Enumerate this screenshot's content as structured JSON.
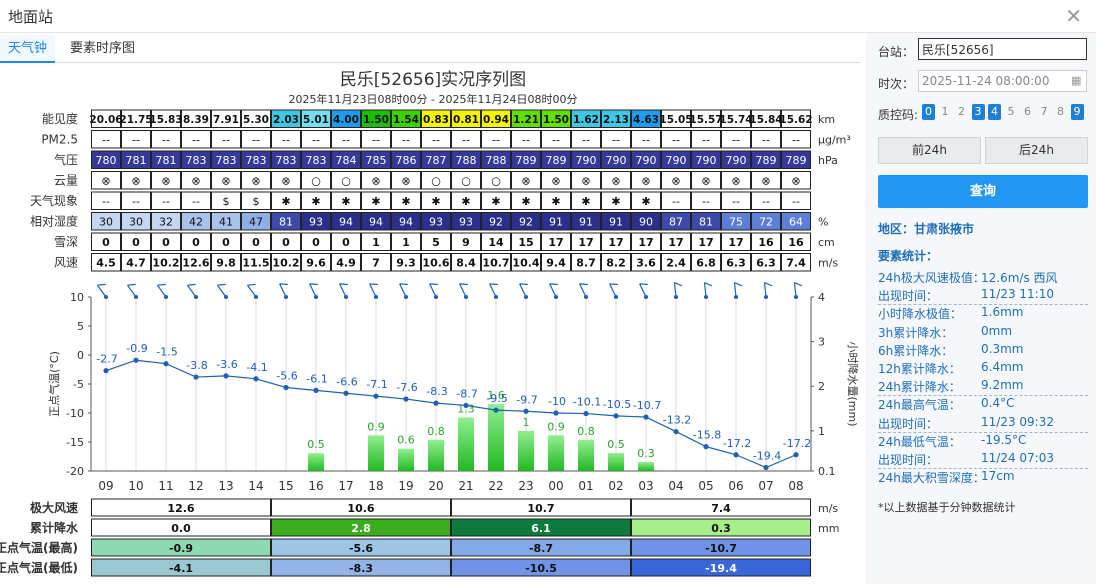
{
  "window": {
    "title": "地面站"
  },
  "tabs": [
    {
      "label": "天气钟"
    },
    {
      "label": "要素时序图"
    }
  ],
  "chart": {
    "title": "民乐[52656]实况序列图",
    "subtitle": "2025年11月23日08时00分 - 2025年11月24日08时00分"
  },
  "table": {
    "rows": [
      {
        "label": "能见度",
        "unit": "km",
        "values": [
          "20.06",
          "21.75",
          "15.83",
          "8.39",
          "7.91",
          "5.30",
          "2.03",
          "5.01",
          "4.00",
          "1.50",
          "1.54",
          "0.83",
          "0.81",
          "0.94",
          "1.21",
          "1.50",
          "1.62",
          "2.13",
          "4.63",
          "15.05",
          "15.57",
          "15.74",
          "15.84",
          "15.62"
        ],
        "colors": [
          "#fff",
          "#fff",
          "#fff",
          "#fff",
          "#fff",
          "#fff",
          "#3fc7e6",
          "#74dff0",
          "#1e9df0",
          "#18c000",
          "#3bd200",
          "#f5f500",
          "#f5f500",
          "#f5f500",
          "#60e000",
          "#60e000",
          "#3fc7e6",
          "#3fc7e6",
          "#1e9df0",
          "#fff",
          "#fff",
          "#fff",
          "#fff",
          "#fff"
        ]
      },
      {
        "label": "PM2.5",
        "unit": "μg/m³",
        "values": [
          "--",
          "--",
          "--",
          "--",
          "--",
          "--",
          "--",
          "--",
          "--",
          "--",
          "--",
          "--",
          "--",
          "--",
          "--",
          "--",
          "--",
          "--",
          "--",
          "--",
          "--",
          "--",
          "--",
          "--"
        ]
      },
      {
        "label": "气压",
        "unit": "hPa",
        "values": [
          "780",
          "781",
          "781",
          "783",
          "783",
          "783",
          "783",
          "783",
          "784",
          "785",
          "786",
          "787",
          "788",
          "788",
          "789",
          "789",
          "790",
          "790",
          "790",
          "790",
          "790",
          "790",
          "789",
          "789"
        ]
      },
      {
        "label": "云量",
        "unit": "",
        "values": [
          "⊗",
          "⊗",
          "⊗",
          "⊗",
          "⊗",
          "⊗",
          "⊗",
          "○",
          "○",
          "⊗",
          "⊗",
          "○",
          "○",
          "○",
          "⊗",
          "⊗",
          "⊗",
          "⊗",
          "⊗",
          "⊗",
          "⊗",
          "⊗",
          "⊗",
          "⊗"
        ]
      },
      {
        "label": "天气现象",
        "unit": "",
        "values": [
          "--",
          "--",
          "--",
          "--",
          "$",
          "$",
          "✱",
          "✱",
          "✱",
          "✱",
          "✱",
          "✱",
          "✱",
          "✱",
          "✱",
          "✱",
          "✱",
          "✱",
          "✱",
          "--",
          "--",
          "--",
          "--",
          "--"
        ]
      },
      {
        "label": "相对湿度",
        "unit": "%",
        "values": [
          "30",
          "30",
          "32",
          "42",
          "41",
          "47",
          "81",
          "93",
          "94",
          "94",
          "94",
          "93",
          "93",
          "92",
          "92",
          "91",
          "91",
          "91",
          "90",
          "87",
          "81",
          "75",
          "72",
          "64"
        ]
      },
      {
        "label": "雪深",
        "unit": "cm",
        "values": [
          "0",
          "0",
          "0",
          "0",
          "0",
          "0",
          "0",
          "0",
          "0",
          "1",
          "1",
          "5",
          "9",
          "14",
          "15",
          "17",
          "17",
          "17",
          "17",
          "17",
          "17",
          "17",
          "16",
          "16"
        ]
      },
      {
        "label": "风速",
        "unit": "m/s",
        "values": [
          "4.5",
          "4.7",
          "10.2",
          "12.6",
          "9.8",
          "11.5",
          "10.2",
          "9.6",
          "4.9",
          "7",
          "9.3",
          "10.6",
          "8.4",
          "10.7",
          "10.4",
          "9.4",
          "8.7",
          "8.2",
          "3.6",
          "2.4",
          "6.8",
          "6.3",
          "6.3",
          "7.4"
        ]
      }
    ]
  },
  "chart_data": {
    "type": "line",
    "x": [
      "09",
      "10",
      "11",
      "12",
      "13",
      "14",
      "15",
      "16",
      "17",
      "18",
      "19",
      "20",
      "21",
      "22",
      "23",
      "00",
      "01",
      "02",
      "03",
      "04",
      "05",
      "06",
      "07",
      "08"
    ],
    "series": [
      {
        "values": [
          -2.7,
          -0.9,
          -1.5,
          -3.8,
          -3.6,
          -4.1,
          -5.6,
          -6.1,
          -6.6,
          -7.1,
          -7.6,
          -8.3,
          -8.7,
          -9.5,
          -9.7,
          -10,
          -10.1,
          -10.5,
          -10.7,
          -13.2,
          -15.8,
          -17.2,
          -19.4,
          -17.2
        ],
        "color": "#1e5fb8"
      },
      {
        "type": "bar",
        "values": [
          null,
          null,
          null,
          null,
          null,
          null,
          null,
          0.5,
          null,
          0.9,
          0.6,
          0.8,
          1.3,
          1.6,
          1,
          0.9,
          0.8,
          0.5,
          0.3,
          null,
          null,
          null,
          null,
          null
        ],
        "color": "#3ad23a"
      }
    ],
    "ylabel": "正点气温(°C)",
    "y2label": "小时降水量(mm)",
    "ylim": [
      -20,
      10
    ],
    "y2lim": [
      0.1,
      4
    ],
    "yticks": [
      10,
      5,
      0,
      -5,
      -10,
      -15,
      -20
    ],
    "y2ticks": [
      "4",
      "3",
      "2",
      "1",
      "0.1"
    ],
    "grid": true
  },
  "summary": {
    "units": [
      "m/s",
      "mm",
      "",
      ""
    ],
    "rows": [
      {
        "label": "极大风速",
        "cells": [
          {
            "v": "12.6",
            "c": "#fff"
          },
          {
            "v": "10.6",
            "c": "#fff"
          },
          {
            "v": "10.7",
            "c": "#fff"
          },
          {
            "v": "7.4",
            "c": "#fff"
          }
        ]
      },
      {
        "label": "累计降水",
        "cells": [
          {
            "v": "0.0",
            "c": "#fff"
          },
          {
            "v": "2.8",
            "c": "#3cad1c"
          },
          {
            "v": "6.1",
            "c": "#0e7a3e"
          },
          {
            "v": "0.3",
            "c": "#a6ef8a"
          }
        ]
      },
      {
        "label": "正点气温(最高)",
        "cells": [
          {
            "v": "-0.9",
            "c": "#8fd9b0"
          },
          {
            "v": "-5.6",
            "c": "#9dc5e6"
          },
          {
            "v": "-8.7",
            "c": "#83a9e8"
          },
          {
            "v": "-10.7",
            "c": "#6f93e6"
          }
        ]
      },
      {
        "label": "正点气温(最低)",
        "cells": [
          {
            "v": "-4.1",
            "c": "#9ac8d2"
          },
          {
            "v": "-8.3",
            "c": "#91b3e8"
          },
          {
            "v": "-10.5",
            "c": "#6f93e6"
          },
          {
            "v": "-19.4",
            "c": "#3a66dc"
          }
        ]
      }
    ]
  },
  "side": {
    "station_label": "台站：",
    "station_value": "民乐[52656]",
    "time_label": "时次：",
    "time_value": "2025-11-24 08:00:00",
    "qc_label": "质控码:",
    "qc_codes": [
      "0",
      "1",
      "2",
      "3",
      "4",
      "5",
      "6",
      "7",
      "8",
      "9"
    ],
    "qc_active": [
      true,
      false,
      false,
      true,
      true,
      false,
      false,
      false,
      false,
      true
    ],
    "prev_btn": "前24h",
    "next_btn": "后24h",
    "query_btn": "查询",
    "region": "地区：甘肃张掖市",
    "stats_title": "要素统计：",
    "stats": [
      {
        "k": "24h极大风速极值：",
        "v": "12.6m/s 西风",
        "sep": false
      },
      {
        "k": "出现时间：",
        "v": "11/23 11:10",
        "sep": true
      },
      {
        "k": "小时降水极值：",
        "v": "1.6mm",
        "sep": false
      },
      {
        "k": "3h累计降水：",
        "v": "0mm",
        "sep": false
      },
      {
        "k": "6h累计降水：",
        "v": "0.3mm",
        "sep": false
      },
      {
        "k": "12h累计降水：",
        "v": "6.4mm",
        "sep": false
      },
      {
        "k": "24h累计降水：",
        "v": "9.2mm",
        "sep": true
      },
      {
        "k": "24h最高气温：",
        "v": "0.4°C",
        "sep": false
      },
      {
        "k": "出现时间：",
        "v": "11/23 09:32",
        "sep": true
      },
      {
        "k": "24h最低气温：",
        "v": "-19.5°C",
        "sep": false
      },
      {
        "k": "出现时间：",
        "v": "11/24 07:03",
        "sep": true
      },
      {
        "k": "24h最大积雪深度：",
        "v": "17cm",
        "sep": false
      }
    ],
    "note": "*以上数据基于分钟数据统计"
  }
}
